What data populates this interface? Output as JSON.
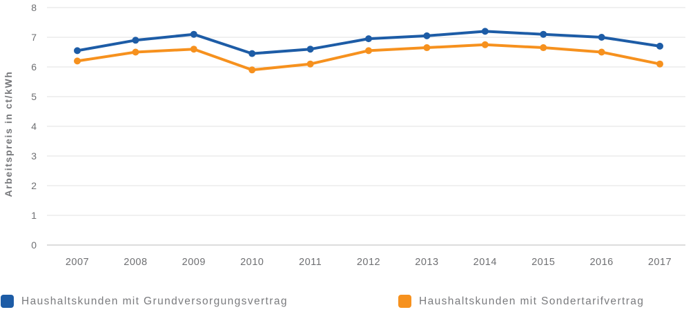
{
  "chart_data": {
    "type": "line",
    "title": "",
    "xlabel": "",
    "ylabel": "Arbeitspreis in ct/kWh",
    "categories": [
      "2007",
      "2008",
      "2009",
      "2010",
      "2011",
      "2012",
      "2013",
      "2014",
      "2015",
      "2016",
      "2017"
    ],
    "series": [
      {
        "name": "Haushaltskunden mit Grundversorgungsvertrag",
        "color": "#1d5ca6",
        "values": [
          6.55,
          6.9,
          7.1,
          6.45,
          6.6,
          6.95,
          7.05,
          7.2,
          7.1,
          7.0,
          6.7
        ]
      },
      {
        "name": "Haushaltskunden mit Sondertarifvertrag",
        "color": "#f6911e",
        "values": [
          6.2,
          6.5,
          6.6,
          5.9,
          6.1,
          6.55,
          6.65,
          6.75,
          6.65,
          6.5,
          6.1
        ]
      }
    ],
    "ylim": [
      0,
      8
    ],
    "yticks": [
      0,
      1,
      2,
      3,
      4,
      5,
      6,
      7,
      8
    ],
    "grid": true,
    "legend_position": "bottom"
  },
  "colors": {
    "grid_line": "#e6e6e6",
    "axis_line": "#c6c6c6",
    "tick_label": "#6e6f72",
    "legend_text": "#7a7b7e",
    "axis_title": "#76777a",
    "background": "#ffffff"
  }
}
